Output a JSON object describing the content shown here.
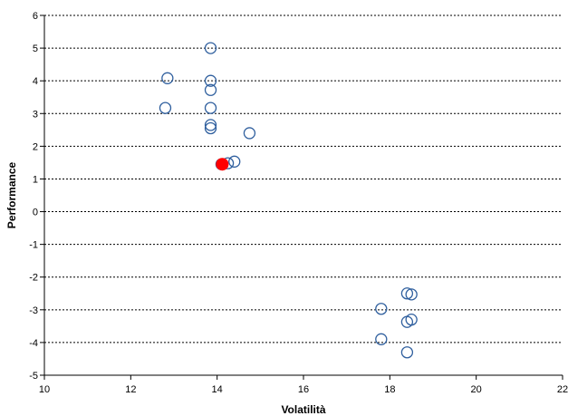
{
  "chart_data": {
    "type": "scatter",
    "xlabel": "Volatilità",
    "ylabel": "Performance",
    "xlim": [
      10,
      22
    ],
    "ylim": [
      -5,
      6
    ],
    "x_ticks": [
      10,
      12,
      14,
      16,
      18,
      20,
      22
    ],
    "y_ticks": [
      -5,
      -4,
      -3,
      -2,
      -1,
      0,
      1,
      2,
      3,
      4,
      5,
      6
    ],
    "grid": "horizontal dotted",
    "colors": {
      "point_outline": "#2f5f9e",
      "highlight": "#ff0000",
      "axis": "#000000",
      "grid": "#000000"
    },
    "series": [
      {
        "points": [
          {
            "x": 13.85,
            "y": 5.0
          },
          {
            "x": 12.85,
            "y": 4.08
          },
          {
            "x": 13.85,
            "y": 4.0
          },
          {
            "x": 13.85,
            "y": 3.72
          },
          {
            "x": 12.8,
            "y": 3.17
          },
          {
            "x": 13.85,
            "y": 3.17
          },
          {
            "x": 13.85,
            "y": 2.65
          },
          {
            "x": 13.85,
            "y": 2.55
          },
          {
            "x": 14.75,
            "y": 2.4
          },
          {
            "x": 14.1,
            "y": 1.45
          },
          {
            "x": 14.25,
            "y": 1.48
          },
          {
            "x": 14.4,
            "y": 1.53
          },
          {
            "x": 18.4,
            "y": -2.5
          },
          {
            "x": 18.5,
            "y": -2.53
          },
          {
            "x": 17.8,
            "y": -2.97
          },
          {
            "x": 18.5,
            "y": -3.3
          },
          {
            "x": 18.4,
            "y": -3.37
          },
          {
            "x": 17.8,
            "y": -3.9
          },
          {
            "x": 18.4,
            "y": -4.3
          }
        ]
      },
      {
        "highlight": true,
        "points": [
          {
            "x": 14.12,
            "y": 1.45
          }
        ]
      }
    ]
  }
}
